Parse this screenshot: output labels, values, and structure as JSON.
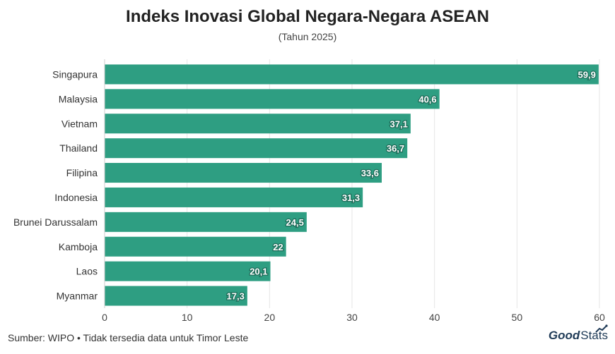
{
  "chart_data": {
    "type": "bar",
    "orientation": "horizontal",
    "title": "Indeks Inovasi Global Negara-Negara ASEAN",
    "subtitle": "(Tahun 2025)",
    "categories": [
      "Singapura",
      "Malaysia",
      "Vietnam",
      "Thailand",
      "Filipina",
      "Indonesia",
      "Brunei Darussalam",
      "Kamboja",
      "Laos",
      "Myanmar"
    ],
    "values": [
      59.9,
      40.6,
      37.1,
      36.7,
      33.6,
      31.3,
      24.5,
      22,
      20.1,
      17.3
    ],
    "value_labels": [
      "59,9",
      "40,6",
      "37,1",
      "36,7",
      "33,6",
      "31,3",
      "24,5",
      "22",
      "20,1",
      "17,3"
    ],
    "xlim": [
      0,
      60
    ],
    "xticks": [
      0,
      10,
      20,
      30,
      40,
      50,
      60
    ],
    "xlabel": "",
    "ylabel": "",
    "grid": true,
    "bar_color": "#2e9e82"
  },
  "footer": {
    "source": "Sumber: WIPO • Tidak tersedia data untuk Timor Leste",
    "logo_good": "Good",
    "logo_stats": "Stats"
  }
}
